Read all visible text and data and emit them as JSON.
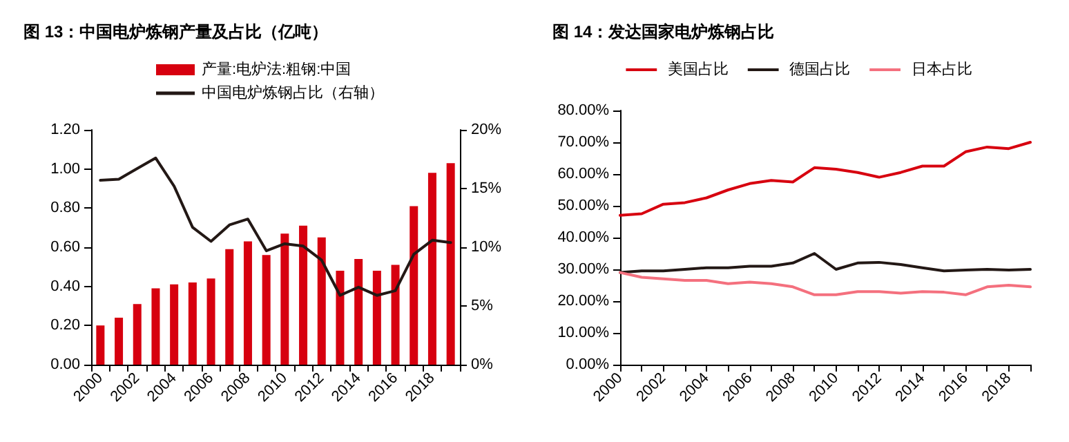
{
  "chart_data": [
    {
      "type": "bar",
      "title": "图 13：中国电炉炼钢产量及占比（亿吨）",
      "categories": [
        "2000",
        null,
        "2002",
        null,
        "2004",
        null,
        "2006",
        null,
        "2008",
        null,
        "2010",
        null,
        "2012",
        null,
        "2014",
        null,
        "2016",
        null,
        "2018",
        null
      ],
      "series": [
        {
          "name": "产量:电炉法:粗钢:中国",
          "type": "bar",
          "color": "#d7000f",
          "values": [
            0.2,
            0.24,
            0.31,
            0.39,
            0.41,
            0.42,
            0.44,
            0.59,
            0.63,
            0.56,
            0.67,
            0.71,
            0.65,
            0.48,
            0.54,
            0.48,
            0.51,
            0.81,
            0.98,
            1.03
          ]
        },
        {
          "name": "中国电炉炼钢占比（右轴）",
          "type": "line",
          "axis": "y2",
          "color": "#231815",
          "values": [
            15.7,
            15.8,
            16.7,
            17.6,
            15.2,
            11.7,
            10.5,
            11.9,
            12.4,
            9.7,
            10.3,
            10.1,
            8.9,
            5.9,
            6.6,
            5.9,
            6.3,
            9.4,
            10.6,
            10.4
          ]
        }
      ],
      "ylim": [
        0,
        1.2
      ],
      "yticks": [
        {
          "value": 0,
          "label": "0.00"
        },
        {
          "value": 0.2,
          "label": "0.20"
        },
        {
          "value": 0.4,
          "label": "0.40"
        },
        {
          "value": 0.6,
          "label": "0.60"
        },
        {
          "value": 0.8,
          "label": "0.80"
        },
        {
          "value": 1,
          "label": "1.00"
        },
        {
          "value": 1.2,
          "label": "1.20"
        }
      ],
      "y2lim": [
        0,
        20
      ],
      "y2ticks": [
        {
          "value": 0,
          "label": "0%"
        },
        {
          "value": 5,
          "label": "5%"
        },
        {
          "value": 10,
          "label": "10%"
        },
        {
          "value": 15,
          "label": "15%"
        },
        {
          "value": 20,
          "label": "20%"
        }
      ],
      "grid": false,
      "legend": "top",
      "marker": "none",
      "line_style": "solid"
    },
    {
      "type": "line",
      "title": "图 14：发达国家电炉炼钢占比",
      "categories": [
        "2000",
        null,
        "2002",
        null,
        "2004",
        null,
        "2006",
        null,
        "2008",
        null,
        "2010",
        null,
        "2012",
        null,
        "2014",
        null,
        "2016",
        null,
        "2018",
        null
      ],
      "series": [
        {
          "name": "美国占比",
          "color": "#d7000f",
          "values": [
            47,
            47.5,
            50.5,
            51,
            52.5,
            55,
            57,
            58,
            57.5,
            62,
            61.5,
            60.5,
            59,
            60.5,
            62.5,
            62.5,
            67,
            68.5,
            68,
            70
          ]
        },
        {
          "name": "德国占比",
          "color": "#231815",
          "values": [
            29,
            29.5,
            29.5,
            30,
            30.5,
            30.5,
            31,
            31,
            32,
            35,
            30,
            32,
            32.2,
            31.5,
            30.5,
            29.5,
            29.8,
            30,
            29.8,
            30
          ]
        },
        {
          "name": "日本占比",
          "color": "#f4707e",
          "values": [
            29,
            27.5,
            27,
            26.5,
            26.5,
            25.5,
            26,
            25.5,
            24.5,
            22,
            22,
            23,
            23,
            22.5,
            23,
            22.8,
            22,
            24.5,
            25,
            24.5
          ]
        }
      ],
      "ylim": [
        0,
        80
      ],
      "yticks": [
        {
          "value": 0,
          "label": "0.00%"
        },
        {
          "value": 10,
          "label": "10.00%"
        },
        {
          "value": 20,
          "label": "20.00%"
        },
        {
          "value": 30,
          "label": "30.00%"
        },
        {
          "value": 40,
          "label": "40.00%"
        },
        {
          "value": 50,
          "label": "50.00%"
        },
        {
          "value": 60,
          "label": "60.00%"
        },
        {
          "value": 70,
          "label": "70.00%"
        },
        {
          "value": 80,
          "label": "80.00%"
        }
      ],
      "grid": false,
      "legend": "top",
      "marker": "none",
      "line_style": "solid"
    }
  ]
}
